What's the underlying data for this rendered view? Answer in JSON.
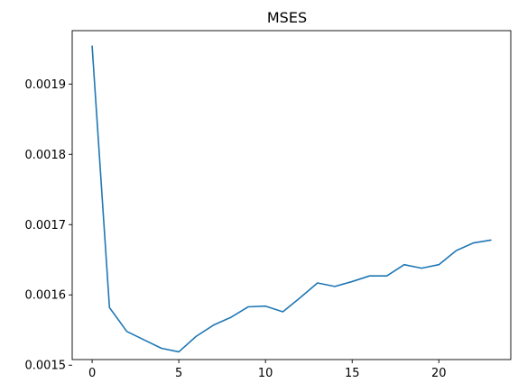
{
  "chart_data": {
    "type": "line",
    "title": "MSES",
    "xlabel": "",
    "ylabel": "",
    "xlim": [
      -1.15,
      24.15
    ],
    "ylim": [
      0.001508,
      0.001976
    ],
    "x_ticks": [
      0,
      5,
      10,
      15,
      20
    ],
    "x_tick_labels": [
      "0",
      "5",
      "10",
      "15",
      "20"
    ],
    "y_ticks": [
      0.0015,
      0.0016,
      0.0017,
      0.0018,
      0.0019
    ],
    "y_tick_labels": [
      "0.0015",
      "0.0016",
      "0.0017",
      "0.0018",
      "0.0019"
    ],
    "grid": false,
    "legend": "none",
    "line_color": "#1f77b4",
    "series": [
      {
        "x": [
          0,
          1,
          2,
          3,
          4,
          5,
          6,
          7,
          8,
          9,
          10,
          11,
          12,
          13,
          14,
          15,
          16,
          17,
          18,
          19,
          20,
          21,
          22,
          23
        ],
        "values": [
          0.001954,
          0.001582,
          0.001548,
          0.001536,
          0.001524,
          0.001519,
          0.001541,
          0.001557,
          0.001568,
          0.001583,
          0.001584,
          0.001576,
          0.001596,
          0.001617,
          0.001612,
          0.001619,
          0.001627,
          0.001627,
          0.001643,
          0.001638,
          0.001643,
          0.001663,
          0.001674,
          0.001678
        ]
      }
    ]
  }
}
